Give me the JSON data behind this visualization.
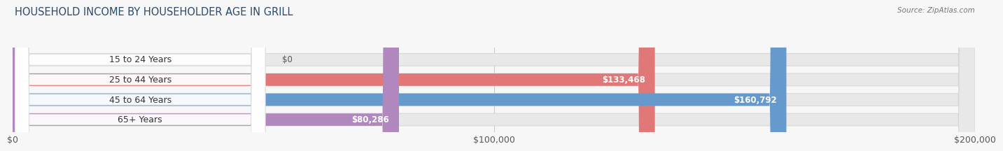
{
  "title": "HOUSEHOLD INCOME BY HOUSEHOLDER AGE IN GRILL",
  "source": "Source: ZipAtlas.com",
  "categories": [
    "15 to 24 Years",
    "25 to 44 Years",
    "45 to 64 Years",
    "65+ Years"
  ],
  "values": [
    0,
    133468,
    160792,
    80286
  ],
  "value_labels": [
    "$0",
    "$133,468",
    "$160,792",
    "$80,286"
  ],
  "bar_colors": [
    "#f0c89a",
    "#e07878",
    "#6699cc",
    "#b088be"
  ],
  "background_color": "#f7f7f7",
  "bar_bg_color": "#e8e8e8",
  "bar_bg_edge_color": "#d8d8d8",
  "xmax": 200000,
  "xticks": [
    0,
    100000,
    200000
  ],
  "xtick_labels": [
    "$0",
    "$100,000",
    "$200,000"
  ],
  "title_fontsize": 10.5,
  "label_fontsize": 9,
  "value_fontsize": 8.5,
  "bar_height": 0.62,
  "source_fontsize": 7.5
}
